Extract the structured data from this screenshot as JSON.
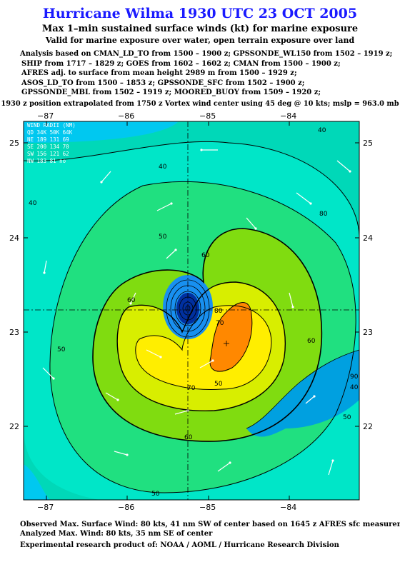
{
  "title": "Hurricane Wilma 1930 UTC 23 OCT 2005",
  "subtitle": "Max 1–min sustained surface winds (kt) for marine exposure",
  "subtitle2": "Valid for marine exposure over water, open terrain exposure over land",
  "analysis_lines": [
    "Analysis based on  CMAN_LD_TO from 1500 – 1900 z;  GPSSONDE_WL150 from 1502 – 1919 z;",
    "SHIP from 1717 – 1829 z;  GOES from 1602 – 1602 z;  CMAN from 1500 – 1900 z;",
    "AFRES adj. to surface from mean height 2989 m from 1500 – 1929 z;",
    "ASOS_LD_TO from 1500 – 1853 z;  GPSSONDE_SFC from 1502 – 1900 z;",
    "GPSSONDE_MBL from 1502 – 1919 z;  MOORED_BUOY from 1509 – 1920 z;"
  ],
  "position_note": "1930 z position extrapolated from 1750 z Vortex wind center using 45 deg @ 10 kts; mslp = 963.0 mb",
  "map": {
    "lon_labels": [
      "−87",
      "−86",
      "−85",
      "−84"
    ],
    "lat_labels": [
      "25",
      "24",
      "23",
      "22"
    ],
    "contour_labels": [
      "40",
      "40",
      "50",
      "50",
      "60",
      "60",
      "60",
      "70",
      "70",
      "80",
      "80",
      "60",
      "50",
      "50",
      "40",
      "40",
      "90",
      "50"
    ],
    "wind_radii": {
      "header": "WIND RADII (NM)",
      "rows": [
        "QD  34K 50K 64K",
        "NE  189 131  69",
        "SE  200 134  70",
        "SW  156 121  62",
        "NW  183  81  no"
      ]
    },
    "colors": {
      "bg": "#00d8b8",
      "c30": "#00c8f0",
      "c40": "#00e6c8",
      "c50": "#20e080",
      "c60": "#80dc10",
      "c70": "#d8ee00",
      "c80": "#ffee00",
      "c90": "#ff8800",
      "eye_light": "#1890f0",
      "eye_dark": "#0030a0",
      "land": "#00a0e0"
    }
  },
  "observed": "Observed Max. Surface Wind: 80 kts, 41 nm SW of center based on 1645 z AFRES sfc measurement",
  "analyzed": "Analyzed Max. Wind: 80 kts, 35 nm SE of center",
  "experimental": "Experimental research product of:  NOAA / AOML / Hurricane Research Division"
}
